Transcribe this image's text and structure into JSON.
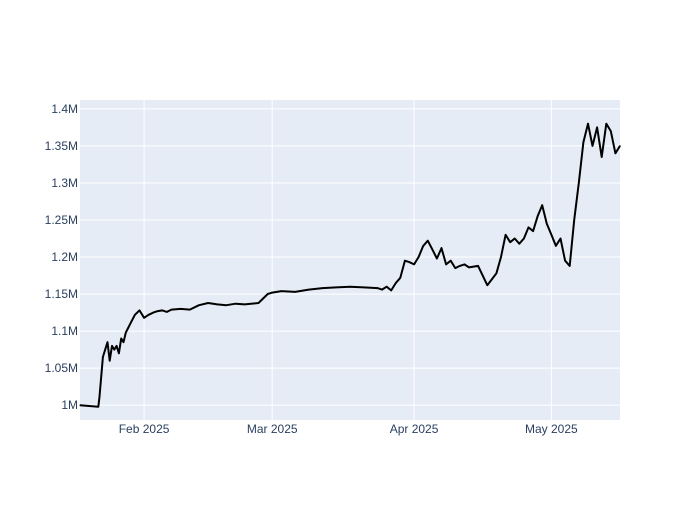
{
  "chart_data": {
    "type": "line",
    "title": "",
    "xlabel": "",
    "ylabel": "",
    "x_range": [
      "2025-01-18",
      "2025-05-16"
    ],
    "ylim": [
      980000,
      1412000
    ],
    "x_ticks": [
      {
        "date": "2025-02-01",
        "label": "Feb 2025"
      },
      {
        "date": "2025-03-01",
        "label": "Mar 2025"
      },
      {
        "date": "2025-04-01",
        "label": "Apr 2025"
      },
      {
        "date": "2025-05-01",
        "label": "May 2025"
      }
    ],
    "y_ticks": [
      {
        "value": 1000000,
        "label": "1M"
      },
      {
        "value": 1050000,
        "label": "1.05M"
      },
      {
        "value": 1100000,
        "label": "1.1M"
      },
      {
        "value": 1150000,
        "label": "1.15M"
      },
      {
        "value": 1200000,
        "label": "1.2M"
      },
      {
        "value": 1250000,
        "label": "1.25M"
      },
      {
        "value": 1300000,
        "label": "1.3M"
      },
      {
        "value": 1350000,
        "label": "1.35M"
      },
      {
        "value": 1400000,
        "label": "1.4M"
      }
    ],
    "grid": true,
    "legend": "none",
    "colors": {
      "plot_bg": "#e5ecf6",
      "grid": "#ffffff",
      "line": "#000000",
      "tick_text": "#2a3f5f"
    },
    "series": [
      {
        "x": [
          "2025-01-18",
          "2025-01-22",
          "2025-01-22T06:00",
          "2025-01-23",
          "2025-01-23T12:00",
          "2025-01-24",
          "2025-01-24T12:00",
          "2025-01-25",
          "2025-01-25T12:00",
          "2025-01-26",
          "2025-01-26T12:00",
          "2025-01-27",
          "2025-01-27T12:00",
          "2025-01-28",
          "2025-01-29",
          "2025-01-30",
          "2025-01-31",
          "2025-02-01",
          "2025-02-02",
          "2025-02-03",
          "2025-02-04",
          "2025-02-05",
          "2025-02-06",
          "2025-02-07",
          "2025-02-09",
          "2025-02-11",
          "2025-02-13",
          "2025-02-15",
          "2025-02-17",
          "2025-02-19",
          "2025-02-21",
          "2025-02-23",
          "2025-02-26",
          "2025-02-28",
          "2025-03-01",
          "2025-03-03",
          "2025-03-06",
          "2025-03-09",
          "2025-03-12",
          "2025-03-15",
          "2025-03-18",
          "2025-03-21",
          "2025-03-24",
          "2025-03-25",
          "2025-03-26",
          "2025-03-27",
          "2025-03-28",
          "2025-03-29",
          "2025-03-30",
          "2025-03-31",
          "2025-04-01",
          "2025-04-02",
          "2025-04-03",
          "2025-04-04",
          "2025-04-05",
          "2025-04-06",
          "2025-04-07",
          "2025-04-08",
          "2025-04-09",
          "2025-04-10",
          "2025-04-11",
          "2025-04-12",
          "2025-04-13",
          "2025-04-15",
          "2025-04-17",
          "2025-04-18",
          "2025-04-19",
          "2025-04-20",
          "2025-04-21",
          "2025-04-22",
          "2025-04-23",
          "2025-04-24",
          "2025-04-25",
          "2025-04-26",
          "2025-04-27",
          "2025-04-28",
          "2025-04-29",
          "2025-04-30",
          "2025-05-01",
          "2025-05-02",
          "2025-05-03",
          "2025-05-04",
          "2025-05-05",
          "2025-05-06",
          "2025-05-07",
          "2025-05-08",
          "2025-05-09",
          "2025-05-10",
          "2025-05-11",
          "2025-05-12",
          "2025-05-13",
          "2025-05-14",
          "2025-05-15",
          "2025-05-16"
        ],
        "y": [
          1000000,
          998000,
          1010000,
          1065000,
          1075000,
          1085000,
          1060000,
          1080000,
          1075000,
          1080000,
          1070000,
          1090000,
          1085000,
          1098000,
          1110000,
          1122000,
          1128000,
          1118000,
          1122000,
          1125000,
          1127000,
          1128000,
          1126000,
          1129000,
          1130000,
          1129000,
          1135000,
          1138000,
          1136000,
          1135000,
          1137000,
          1136000,
          1138000,
          1150000,
          1152000,
          1154000,
          1153000,
          1156000,
          1158000,
          1159000,
          1160000,
          1159000,
          1158000,
          1156000,
          1160000,
          1155000,
          1165000,
          1172000,
          1195000,
          1193000,
          1190000,
          1200000,
          1215000,
          1222000,
          1210000,
          1198000,
          1212000,
          1190000,
          1195000,
          1185000,
          1188000,
          1190000,
          1186000,
          1188000,
          1162000,
          1170000,
          1178000,
          1200000,
          1230000,
          1220000,
          1225000,
          1218000,
          1225000,
          1240000,
          1235000,
          1255000,
          1270000,
          1245000,
          1230000,
          1215000,
          1225000,
          1195000,
          1188000,
          1250000,
          1300000,
          1355000,
          1380000,
          1350000,
          1375000,
          1335000,
          1380000,
          1370000,
          1340000,
          1350000
        ]
      }
    ]
  }
}
